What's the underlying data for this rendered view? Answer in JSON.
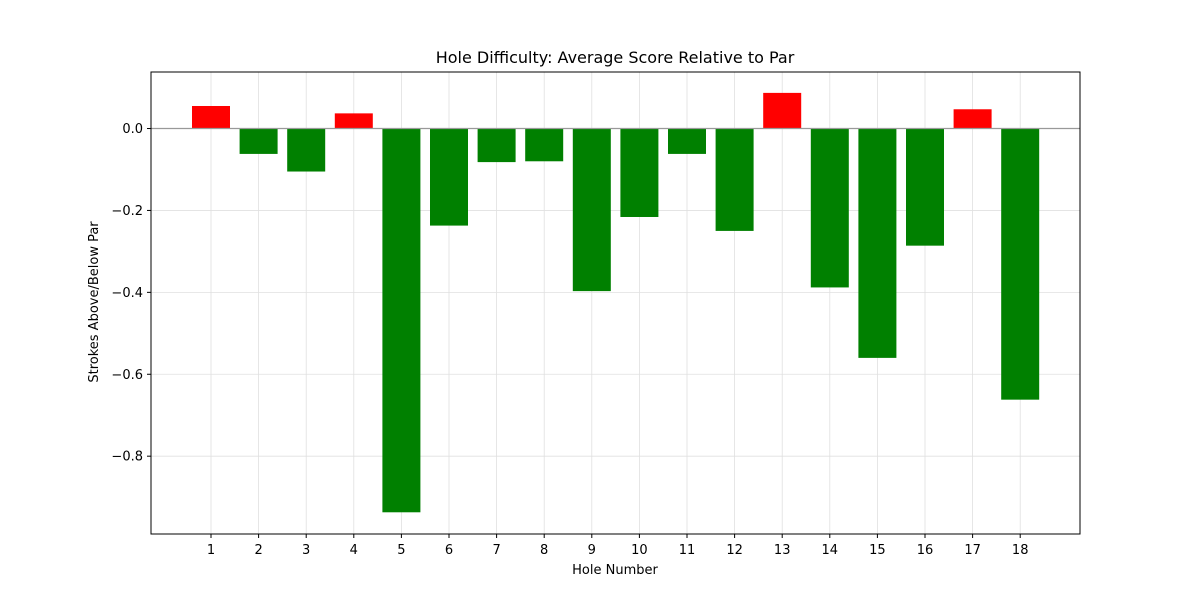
{
  "chart_data": {
    "type": "bar",
    "title": "Hole Difficulty: Average Score Relative to Par",
    "xlabel": "Hole Number",
    "ylabel": "Strokes Above/Below Par",
    "categories": [
      "1",
      "2",
      "3",
      "4",
      "5",
      "6",
      "7",
      "8",
      "9",
      "10",
      "11",
      "12",
      "13",
      "14",
      "15",
      "16",
      "17",
      "18"
    ],
    "values": [
      0.055,
      -0.062,
      -0.105,
      0.037,
      -0.937,
      -0.237,
      -0.082,
      -0.08,
      -0.397,
      -0.216,
      -0.062,
      -0.25,
      0.087,
      -0.388,
      -0.56,
      -0.286,
      0.047,
      -0.662
    ],
    "ylim": [
      -0.99,
      0.138
    ],
    "yticks": [
      0.0,
      -0.2,
      -0.4,
      -0.6,
      -0.8
    ],
    "ytick_labels": [
      "0.0",
      "−0.2",
      "−0.4",
      "−0.6",
      "−0.8"
    ],
    "grid": true,
    "colors": {
      "positive": "#ff0000",
      "negative": "#008000",
      "zero_line": "#999999",
      "grid": "#e0e0e0"
    }
  }
}
